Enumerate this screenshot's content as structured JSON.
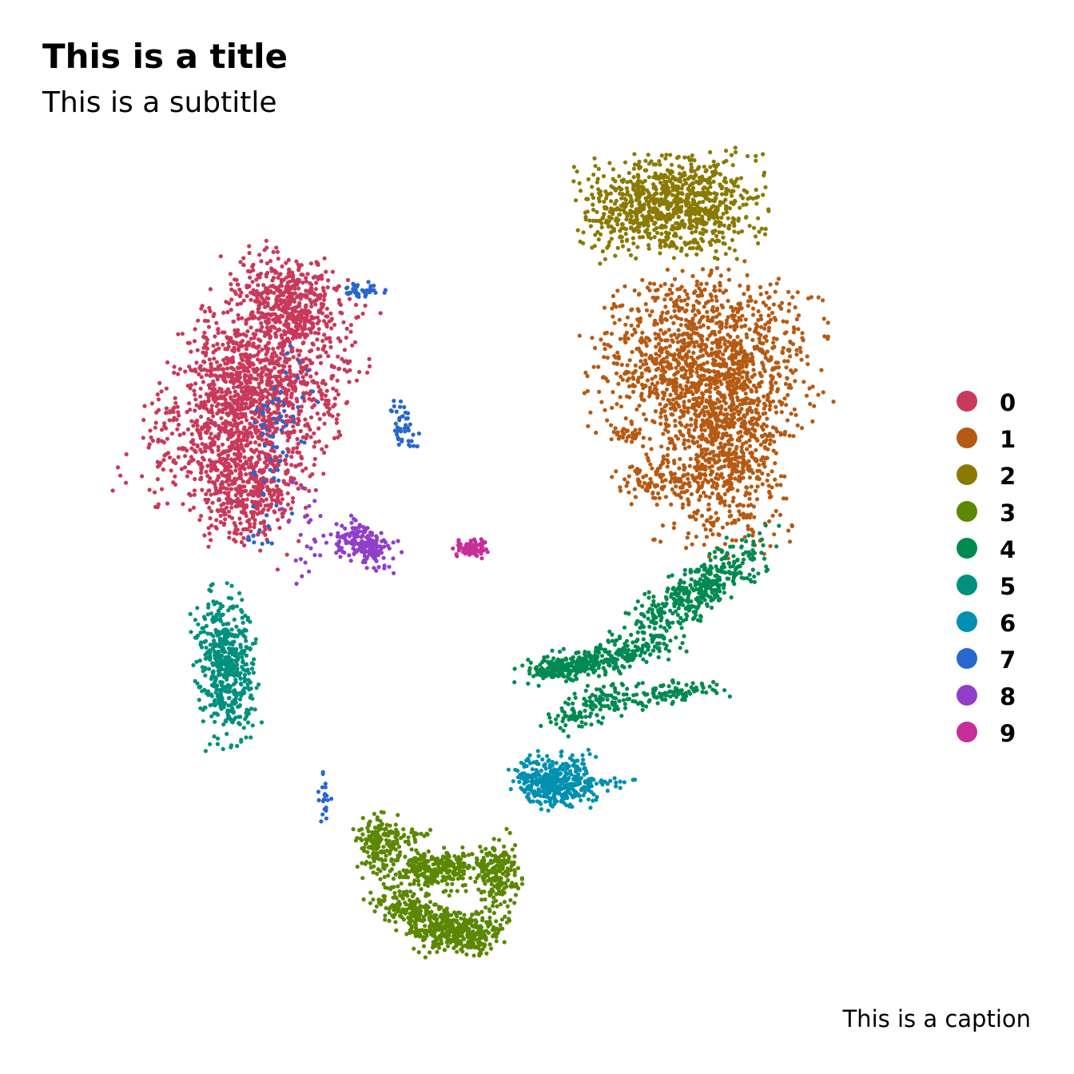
{
  "chart_data": {
    "type": "scatter",
    "title": "This is a title",
    "subtitle": "This is a subtitle",
    "caption": "This is a caption",
    "xlabel": "",
    "ylabel": "",
    "axes_visible": false,
    "grid": false,
    "legend_position": "right",
    "xlim": [
      -10.5,
      13.5
    ],
    "ylim": [
      -11.5,
      11.5
    ],
    "series": [
      {
        "name": "0",
        "color": "#C9395A",
        "clusters": [
          {
            "cx": -5.2,
            "cy": 4.3,
            "sx": 1.15,
            "sy": 1.65,
            "rot": -0.45,
            "n": 1650
          },
          {
            "cx": -4.0,
            "cy": 7.0,
            "sx": 0.75,
            "sy": 0.6,
            "rot": -0.3,
            "n": 350
          },
          {
            "cx": -5.2,
            "cy": 1.6,
            "sx": 0.7,
            "sy": 0.55,
            "rot": 0.0,
            "n": 250
          },
          {
            "cx": -7.3,
            "cy": 4.0,
            "sx": 0.25,
            "sy": 0.07,
            "rot": 0.0,
            "n": 12
          }
        ]
      },
      {
        "name": "1",
        "color": "#B65A13",
        "clusters": [
          {
            "cx": 7.7,
            "cy": 5.5,
            "sx": 1.5,
            "sy": 1.05,
            "rot": 0.1,
            "n": 1100
          },
          {
            "cx": 8.2,
            "cy": 3.0,
            "sx": 0.9,
            "sy": 1.25,
            "rot": 0.0,
            "n": 800
          },
          {
            "cx": 6.2,
            "cy": 2.2,
            "sx": 0.5,
            "sy": 0.3,
            "rot": 0.0,
            "n": 90
          },
          {
            "cx": 5.5,
            "cy": 3.4,
            "sx": 0.3,
            "sy": 0.15,
            "rot": 0.0,
            "n": 30
          }
        ]
      },
      {
        "name": "2",
        "color": "#8A7A02",
        "clusters": [
          {
            "cx": 6.7,
            "cy": 9.6,
            "sx": 1.15,
            "sy": 0.65,
            "rot": 0.05,
            "n": 950
          }
        ]
      },
      {
        "name": "3",
        "color": "#5C8703",
        "clusters": [
          {
            "cx": -1.6,
            "cy": -7.8,
            "sx": 0.3,
            "sy": 0.4,
            "rot": 0.0,
            "n": 160
          },
          {
            "cx": -0.1,
            "cy": -8.5,
            "sx": 0.5,
            "sy": 0.3,
            "rot": 0.0,
            "n": 180
          },
          {
            "cx": 0.8,
            "cy": -10.1,
            "sx": 0.6,
            "sy": 0.3,
            "rot": 0.0,
            "n": 350
          },
          {
            "cx": -0.6,
            "cy": -9.6,
            "sx": 0.6,
            "sy": 0.3,
            "rot": -0.5,
            "n": 220
          },
          {
            "cx": 1.8,
            "cy": -8.5,
            "sx": 0.3,
            "sy": 0.5,
            "rot": 0.0,
            "n": 170
          },
          {
            "cx": 0.6,
            "cy": -8.3,
            "sx": 0.6,
            "sy": 0.2,
            "rot": 0.0,
            "n": 100
          },
          {
            "cx": -1.0,
            "cy": -7.5,
            "sx": 0.4,
            "sy": 0.1,
            "rot": 0.0,
            "n": 40
          }
        ]
      },
      {
        "name": "4",
        "color": "#018A50",
        "clusters": [
          {
            "cx": 7.5,
            "cy": -0.8,
            "sx": 1.2,
            "sy": 0.35,
            "rot": 0.6,
            "n": 420
          },
          {
            "cx": 4.6,
            "cy": -2.7,
            "sx": 1.1,
            "sy": 0.2,
            "rot": 0.2,
            "n": 280
          },
          {
            "cx": 3.6,
            "cy": -3.0,
            "sx": 0.4,
            "sy": 0.15,
            "rot": 0.0,
            "n": 110
          },
          {
            "cx": 4.5,
            "cy": -4.0,
            "sx": 0.7,
            "sy": 0.25,
            "rot": 0.35,
            "n": 140
          },
          {
            "cx": 6.8,
            "cy": -3.6,
            "sx": 0.7,
            "sy": 0.15,
            "rot": 0.1,
            "n": 90
          }
        ]
      },
      {
        "name": "5",
        "color": "#01907E",
        "clusters": [
          {
            "cx": -5.9,
            "cy": -2.9,
            "sx": 0.4,
            "sy": 0.95,
            "rot": 0.1,
            "n": 520
          }
        ]
      },
      {
        "name": "6",
        "color": "#0190B0",
        "clusters": [
          {
            "cx": 3.4,
            "cy": -6.0,
            "sx": 0.55,
            "sy": 0.35,
            "rot": 0.0,
            "n": 370
          },
          {
            "cx": 4.6,
            "cy": -6.1,
            "sx": 0.6,
            "sy": 0.1,
            "rot": 0.0,
            "n": 40
          }
        ]
      },
      {
        "name": "7",
        "color": "#2767CE",
        "clusters": [
          {
            "cx": -2.1,
            "cy": 7.3,
            "sx": 0.3,
            "sy": 0.1,
            "rot": 0.0,
            "n": 40
          },
          {
            "cx": -0.9,
            "cy": 3.6,
            "sx": 0.15,
            "sy": 0.4,
            "rot": 0.4,
            "n": 45
          },
          {
            "cx": -3.1,
            "cy": -6.4,
            "sx": 0.1,
            "sy": 0.35,
            "rot": 0.0,
            "n": 22
          },
          {
            "cx": -4.5,
            "cy": 3.0,
            "sx": 0.45,
            "sy": 1.6,
            "rot": -0.2,
            "n": 70
          }
        ]
      },
      {
        "name": "8",
        "color": "#913FC9",
        "clusters": [
          {
            "cx": -2.0,
            "cy": 0.4,
            "sx": 0.45,
            "sy": 0.25,
            "rot": -0.4,
            "n": 180
          },
          {
            "cx": -3.6,
            "cy": 0.8,
            "sx": 0.4,
            "sy": 0.8,
            "rot": 0.0,
            "n": 25
          }
        ]
      },
      {
        "name": "9",
        "color": "#C72E98",
        "clusters": [
          {
            "cx": 1.1,
            "cy": 0.3,
            "sx": 0.25,
            "sy": 0.12,
            "rot": 0.0,
            "n": 80
          }
        ]
      }
    ]
  }
}
